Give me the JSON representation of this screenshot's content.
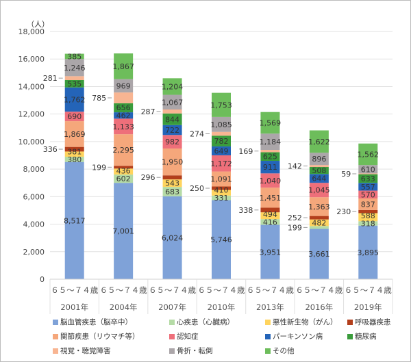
{
  "chart_data": {
    "type": "bar",
    "stacked": true,
    "unit_label": "（人）",
    "ylim": [
      0,
      18000
    ],
    "yticks": [
      "0",
      "2,000",
      "4,000",
      "6,000",
      "8,000",
      "10,000",
      "12,000",
      "14,000",
      "16,000",
      "18,000"
    ],
    "grid": true,
    "legend_position": "bottom",
    "categories": [
      "2001年",
      "2004年",
      "2007年",
      "2010年",
      "2013年",
      "2016年",
      "2019年"
    ],
    "subcategory": "６５～７４歳",
    "series": [
      {
        "name": "脳血管疾患（脳卒中）",
        "color": "#7fa2d8",
        "values": [
          8517,
          7001,
          6024,
          5746,
          3951,
          3661,
          3895
        ]
      },
      {
        "name": "心疾患（心臓病）",
        "color": "#b5dba6",
        "values": [
          380,
          602,
          683,
          331,
          416,
          199,
          318
        ]
      },
      {
        "name": "悪性新生物（がん）",
        "color": "#ffd45e",
        "values": [
          381,
          436,
          543,
          410,
          494,
          482,
          588
        ]
      },
      {
        "name": "呼吸器疾患",
        "color": "#b33f1c",
        "values": [
          336,
          199,
          296,
          250,
          338,
          252,
          230
        ]
      },
      {
        "name": "関節疾患（リウマチ等）",
        "color": "#f5a77b",
        "values": [
          1869,
          2295,
          1950,
          1091,
          1451,
          1363,
          837
        ]
      },
      {
        "name": "認知症",
        "color": "#ee6f7a",
        "values": [
          690,
          1133,
          982,
          1172,
          1040,
          1045,
          570
        ]
      },
      {
        "name": "パーキンソン病",
        "color": "#2464b8",
        "values": [
          1762,
          462,
          722,
          649,
          911,
          644,
          557
        ]
      },
      {
        "name": "糖尿病",
        "color": "#3a9c3c",
        "values": [
          535,
          656,
          844,
          782,
          625,
          508,
          633
        ]
      },
      {
        "name": "視覚・聴覚障害",
        "color": "#f8b592",
        "values": [
          281,
          785,
          287,
          274,
          169,
          142,
          59
        ]
      },
      {
        "name": "骨折・転倒",
        "color": "#aba6a9",
        "values": [
          1246,
          969,
          1067,
          1085,
          1184,
          896,
          610
        ]
      },
      {
        "name": "その他",
        "color": "#6dbd5b",
        "values": [
          385,
          1867,
          1204,
          1753,
          1569,
          1622,
          1562
        ]
      }
    ]
  }
}
